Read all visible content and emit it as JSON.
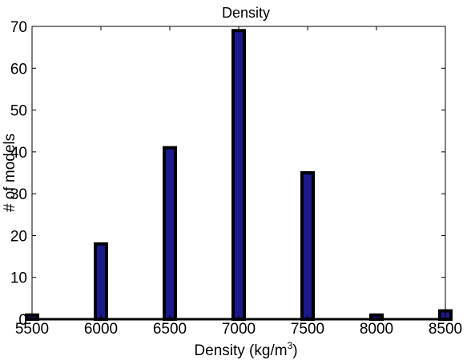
{
  "chart_data": {
    "type": "bar",
    "title": "Density",
    "xlabel": "Density (kg/m",
    "xlabel_superscript": "3",
    "xlabel_suffix": ")",
    "ylabel": "# of models",
    "x": [
      5500,
      6000,
      6500,
      7000,
      7500,
      8000,
      8500
    ],
    "values": [
      1,
      18,
      41,
      69,
      35,
      1,
      2
    ],
    "xlim": [
      5500,
      8500
    ],
    "ylim": [
      0,
      70
    ],
    "xticks": [
      5500,
      6000,
      6500,
      7000,
      7500,
      8000,
      8500
    ],
    "yticks": [
      0,
      10,
      20,
      30,
      40,
      50,
      60,
      70
    ],
    "bar_fill_color": "#1a1a8c",
    "bar_edge_color": "#000000",
    "grid": false,
    "legend": "none"
  }
}
